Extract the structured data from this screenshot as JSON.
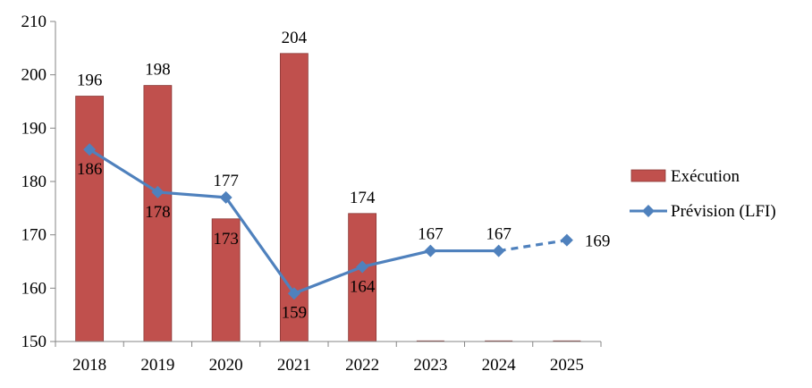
{
  "chart_data": {
    "type": "bar",
    "categories": [
      "2018",
      "2019",
      "2020",
      "2021",
      "2022",
      "2023",
      "2024",
      "2025"
    ],
    "series": [
      {
        "name": "Exécution",
        "kind": "bar",
        "color": "#C0504D",
        "values": [
          196,
          198,
          173,
          204,
          174,
          null,
          null,
          null
        ],
        "labels": [
          "196",
          "198",
          "173",
          "204",
          "174",
          "",
          "",
          ""
        ]
      },
      {
        "name": "Prévision (LFI)",
        "kind": "line",
        "color": "#4F81BD",
        "marker": "diamond",
        "values": [
          186,
          178,
          177,
          159,
          164,
          167,
          167,
          169
        ],
        "labels": [
          "186",
          "178",
          "177",
          "159",
          "164",
          "167",
          "167",
          "169"
        ],
        "dashed_last_segment": true
      }
    ],
    "yticks": [
      "150",
      "160",
      "170",
      "180",
      "190",
      "200",
      "210"
    ],
    "ylim": [
      150,
      210
    ],
    "grid": false,
    "legend_position": "right"
  }
}
